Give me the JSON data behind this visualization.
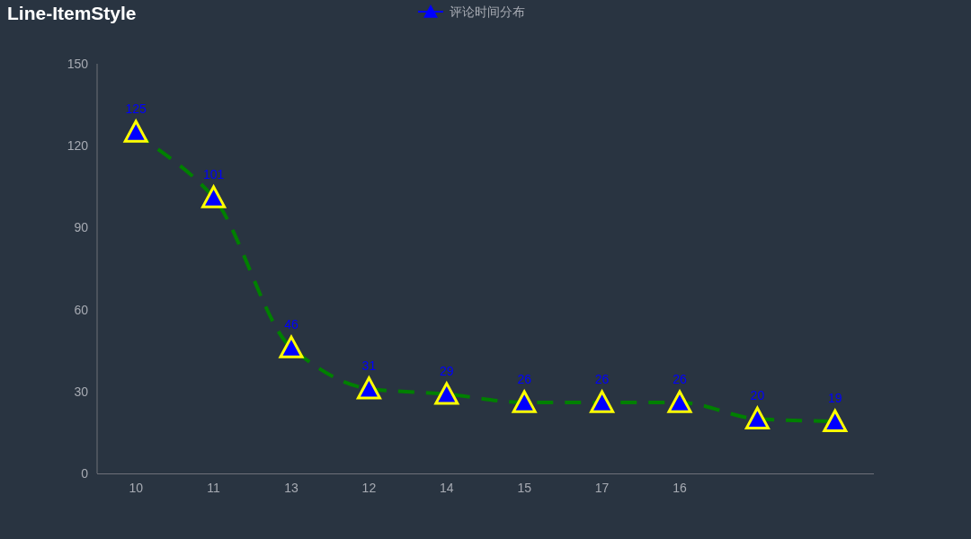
{
  "chart_data": {
    "type": "line",
    "title": "Line-ItemStyle",
    "categories": [
      "10",
      "11",
      "13",
      "12",
      "14",
      "15",
      "17",
      "16",
      null,
      null
    ],
    "series": [
      {
        "name": "评论时间分布",
        "color": "#008000",
        "colors": [
          "#0000ff",
          "#0000ff",
          "#0000ff",
          "#0000ff",
          "#0000ff",
          "#0000ff",
          "#0000ff",
          "#0000ff",
          "#0000ff",
          "#0000ff"
        ],
        "values": [
          125,
          101,
          46,
          31,
          29,
          26,
          26,
          26,
          20,
          19
        ]
      }
    ],
    "ylim": [
      0,
      150
    ],
    "yticks": [
      0,
      30,
      60,
      90,
      120,
      150
    ],
    "legend": "top",
    "marker": "triangle",
    "line_style": "dashed",
    "data_labels": true
  }
}
